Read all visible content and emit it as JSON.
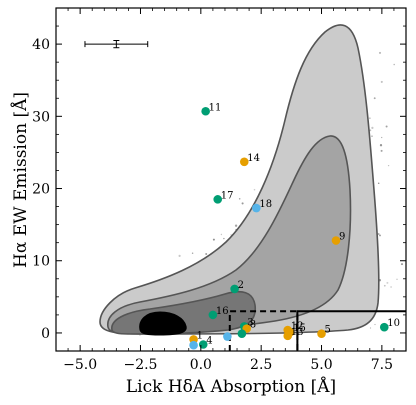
{
  "chart_data": {
    "type": "scatter",
    "xlabel": "Lick HδA Absorption [Å]",
    "ylabel": "Hα EW Emission [Å]",
    "xlim": [
      -6.0,
      8.5
    ],
    "ylim": [
      -2.5,
      45.0
    ],
    "xticks": [
      -5.0,
      -2.5,
      0.0,
      2.5,
      5.0,
      7.5
    ],
    "xtick_labels": [
      "−5.0",
      "−2.5",
      "0.0",
      "2.5",
      "5.0",
      "7.5"
    ],
    "yticks": [
      0,
      10,
      20,
      30,
      40
    ],
    "ytick_labels": [
      "0",
      "10",
      "20",
      "30",
      "40"
    ],
    "grid": false,
    "colors": {
      "green": "#009e73",
      "orange": "#e69f00",
      "blue": "#56b4e9",
      "contour_outer": "#cbcbcb",
      "contour_mid": "#a4a4a4",
      "contour_inner": "#767676",
      "contour_core": "#000000"
    },
    "error_bar": {
      "x": -3.5,
      "y": 40.0,
      "xerr_low": 1.3,
      "xerr_high": 1.3,
      "yerr": 0.5
    },
    "selection_boxes": [
      {
        "style": "dashed",
        "x0": 1.2,
        "x1": 4.0,
        "y0": -2.5,
        "y1": 3.0
      },
      {
        "style": "solid",
        "x0": 4.0,
        "x1": 8.5,
        "y0": -2.5,
        "y1": 3.0
      }
    ],
    "series": [
      {
        "points": [
          {
            "label": "11",
            "x": 0.2,
            "y": 30.7,
            "color": "green"
          },
          {
            "label": "14",
            "x": 1.8,
            "y": 23.7,
            "color": "orange"
          },
          {
            "label": "17",
            "x": 0.7,
            "y": 18.5,
            "color": "green"
          },
          {
            "label": "18",
            "x": 2.3,
            "y": 17.3,
            "color": "blue"
          },
          {
            "label": "9",
            "x": 5.6,
            "y": 12.8,
            "color": "orange"
          },
          {
            "label": "2",
            "x": 1.4,
            "y": 6.1,
            "color": "green"
          },
          {
            "label": "16",
            "x": 0.5,
            "y": 2.5,
            "color": "green"
          },
          {
            "label": "3",
            "x": 1.8,
            "y": 0.9,
            "color": "green"
          },
          {
            "label": "8",
            "x": 1.9,
            "y": 0.6,
            "color": "orange"
          },
          {
            "label": "",
            "x": 1.1,
            "y": -0.5,
            "color": "blue"
          },
          {
            "label": "",
            "x": 1.7,
            "y": -0.1,
            "color": "green"
          },
          {
            "label": "12",
            "x": 3.6,
            "y": 0.4,
            "color": "orange"
          },
          {
            "label": "15",
            "x": 3.7,
            "y": 0.1,
            "color": "orange"
          },
          {
            "label": "13",
            "x": 3.6,
            "y": -0.4,
            "color": "orange"
          },
          {
            "label": "5",
            "x": 5.0,
            "y": -0.1,
            "color": "orange"
          },
          {
            "label": "10",
            "x": 7.6,
            "y": 0.8,
            "color": "green"
          },
          {
            "label": "1",
            "x": -0.3,
            "y": -0.9,
            "color": "orange"
          },
          {
            "label": "4",
            "x": 0.1,
            "y": -1.6,
            "color": "green"
          },
          {
            "label": "",
            "x": -0.3,
            "y": -1.7,
            "color": "blue"
          }
        ]
      }
    ]
  }
}
